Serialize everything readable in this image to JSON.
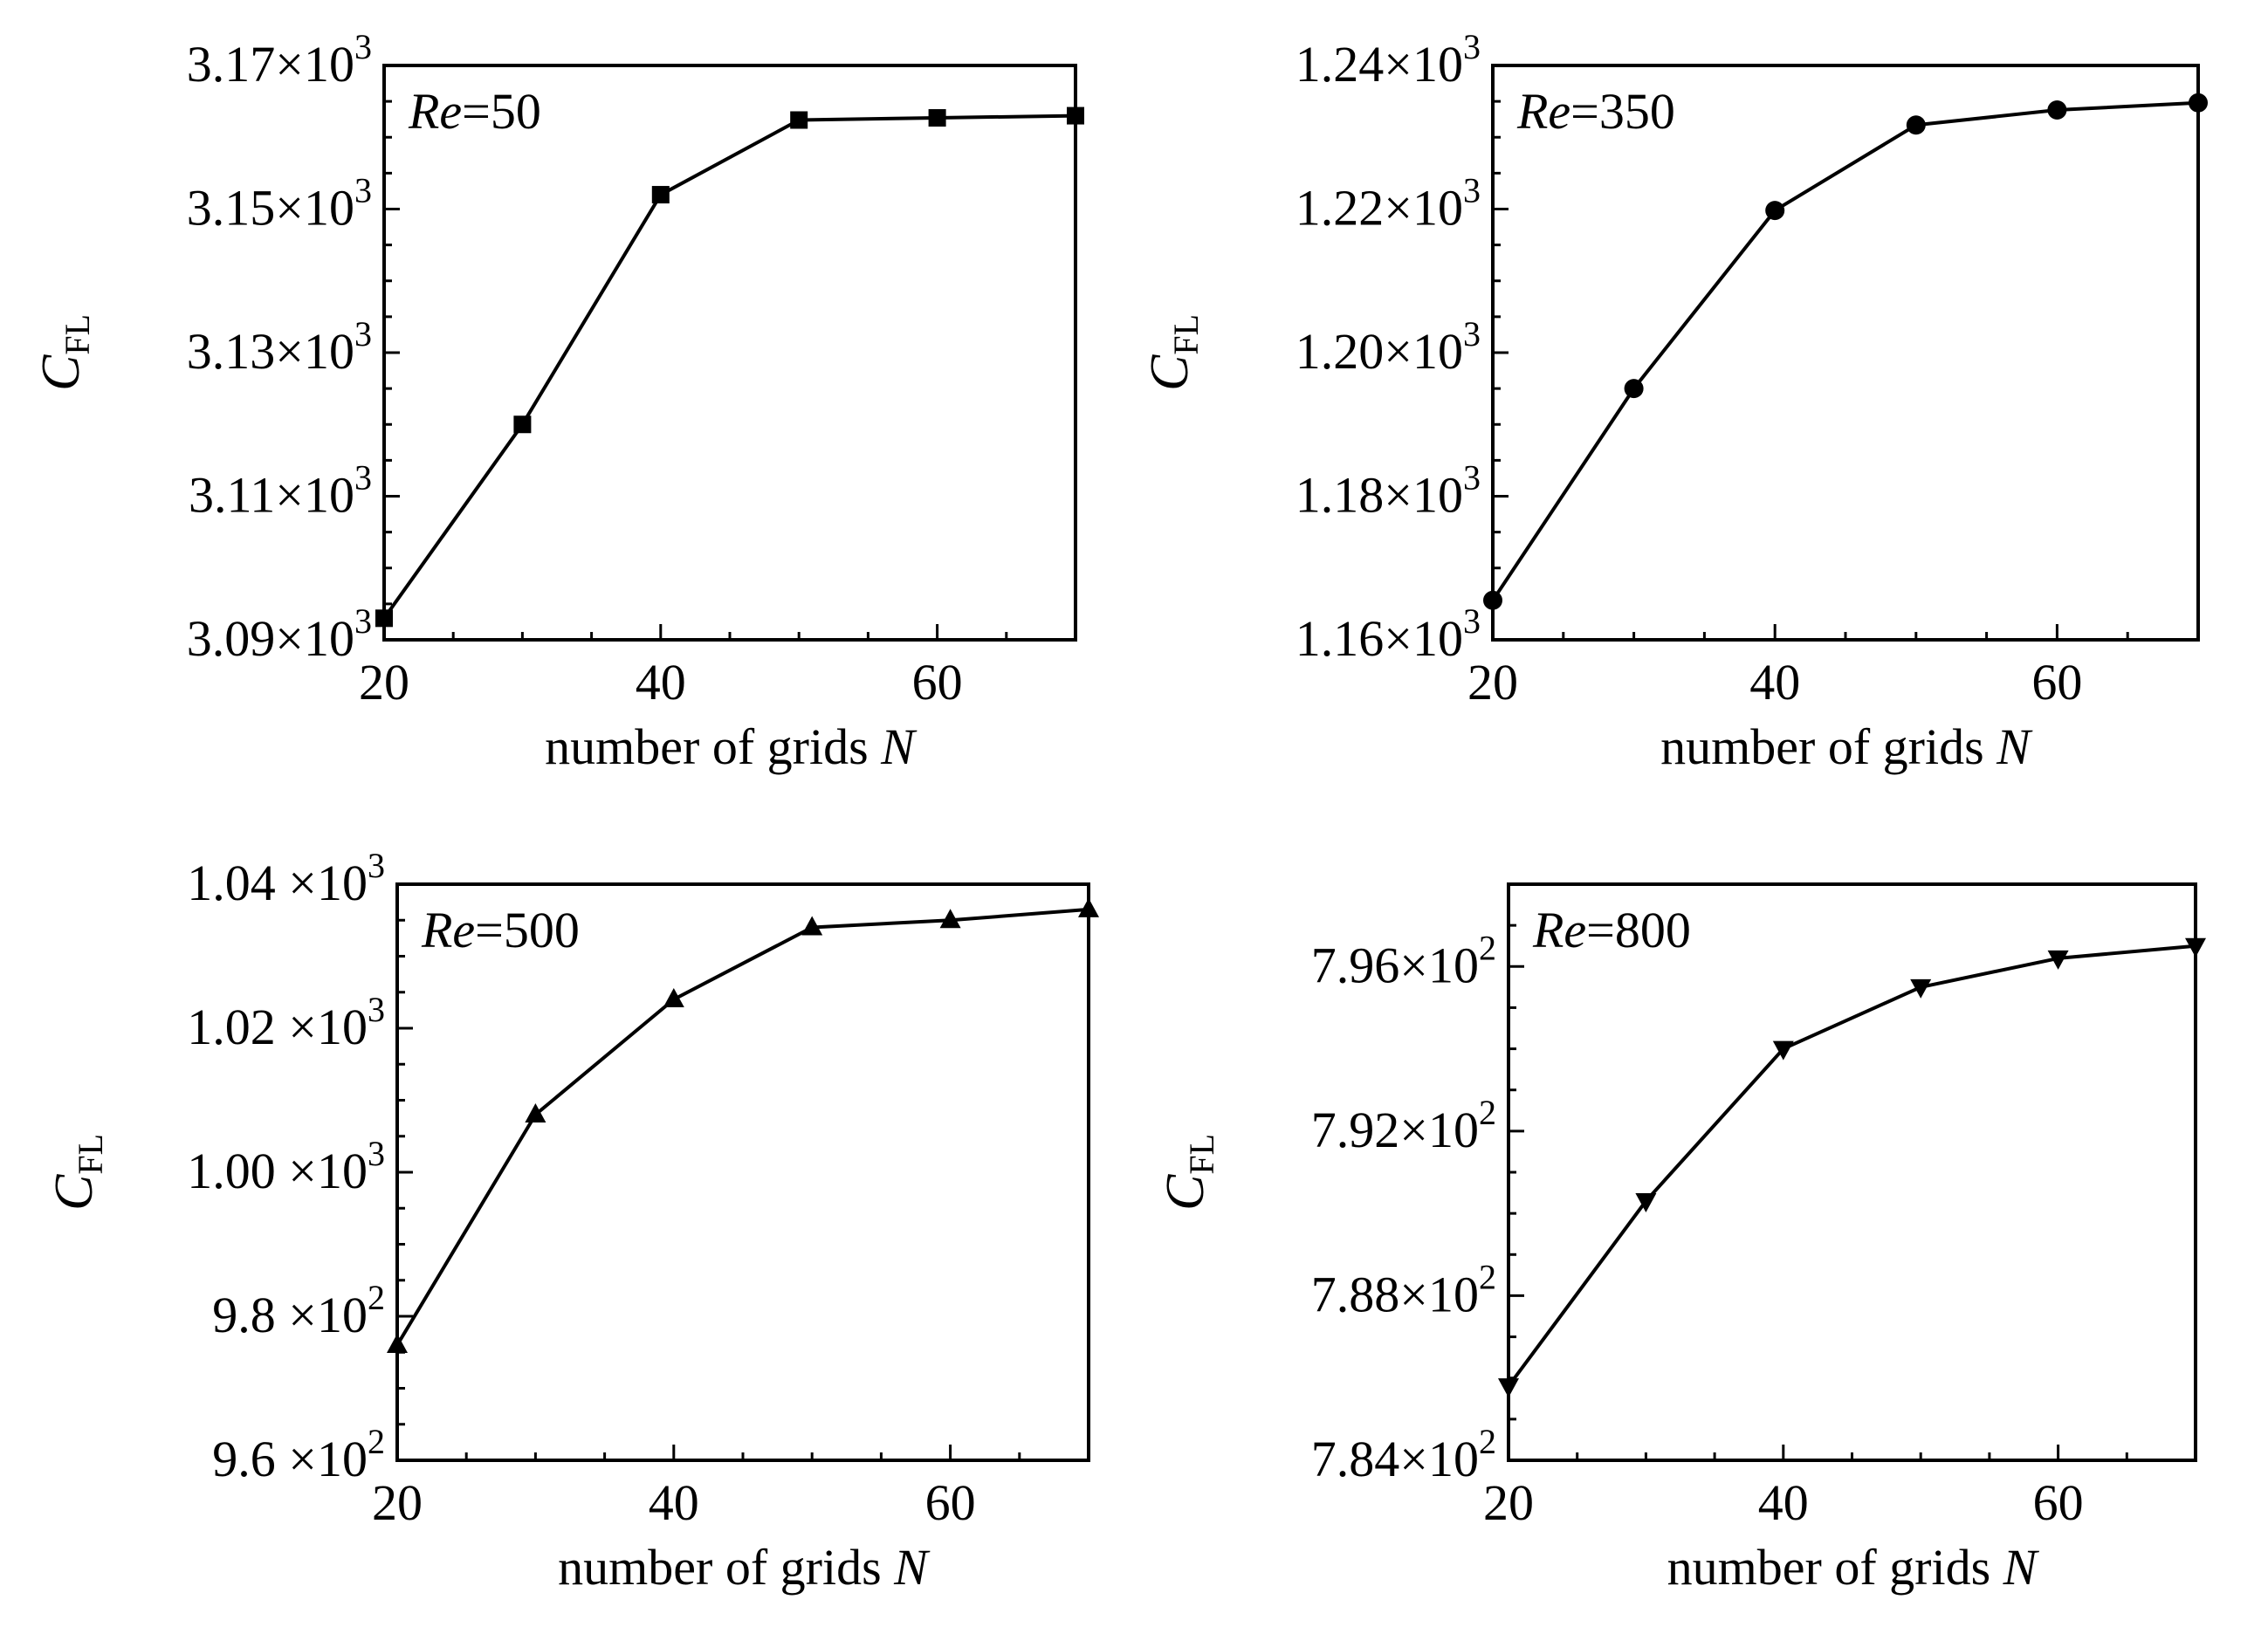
{
  "chart_data": [
    {
      "type": "line",
      "annotation": {
        "italic": "Re",
        "rest": "=50"
      },
      "xlabel": {
        "text": "number of grids ",
        "italic": "N"
      },
      "ylabel": {
        "main": "C",
        "sub": "FL"
      },
      "xlim": [
        20,
        70
      ],
      "ylim": [
        3090,
        3170
      ],
      "xticks": [
        20,
        40,
        60
      ],
      "yticks": [
        {
          "value": 3090,
          "mantissa": "3.09",
          "exponent": "3"
        },
        {
          "value": 3110,
          "mantissa": "3.11",
          "exponent": "3"
        },
        {
          "value": 3130,
          "mantissa": "3.13",
          "exponent": "3"
        },
        {
          "value": 3150,
          "mantissa": "3.15",
          "exponent": "3"
        },
        {
          "value": 3170,
          "mantissa": "3.17",
          "exponent": "3"
        }
      ],
      "marker": "square",
      "x": [
        20,
        30,
        40,
        50,
        60,
        70
      ],
      "y": [
        3093,
        3120,
        3152,
        3162.4,
        3162.7,
        3163.0
      ]
    },
    {
      "type": "line",
      "annotation": {
        "italic": "Re",
        "rest": "=350"
      },
      "xlabel": {
        "text": "number of grids ",
        "italic": "N"
      },
      "ylabel": {
        "main": "C",
        "sub": "FL"
      },
      "xlim": [
        20,
        70
      ],
      "ylim": [
        1160,
        1240
      ],
      "xticks": [
        20,
        40,
        60
      ],
      "yticks": [
        {
          "value": 1160,
          "mantissa": "1.16",
          "exponent": "3"
        },
        {
          "value": 1180,
          "mantissa": "1.18",
          "exponent": "3"
        },
        {
          "value": 1200,
          "mantissa": "1.20",
          "exponent": "3"
        },
        {
          "value": 1220,
          "mantissa": "1.22",
          "exponent": "3"
        },
        {
          "value": 1240,
          "mantissa": "1.24",
          "exponent": "3"
        }
      ],
      "marker": "circle",
      "x": [
        20,
        30,
        40,
        50,
        60,
        70
      ],
      "y": [
        1165.5,
        1195,
        1219.8,
        1231.7,
        1233.8,
        1234.8
      ]
    },
    {
      "type": "line",
      "annotation": {
        "italic": "Re",
        "rest": "=500"
      },
      "xlabel": {
        "text": "number of grids ",
        "italic": "N"
      },
      "ylabel": {
        "main": "C",
        "sub": "FL"
      },
      "xlim": [
        20,
        70
      ],
      "ylim": [
        960,
        1040
      ],
      "xticks": [
        20,
        40,
        60
      ],
      "yticks": [
        {
          "value": 960,
          "mantissa": "9.6 ",
          "exponent": "2"
        },
        {
          "value": 980,
          "mantissa": "9.8 ",
          "exponent": "2"
        },
        {
          "value": 1000,
          "mantissa": "1.00 ",
          "exponent": "3"
        },
        {
          "value": 1020,
          "mantissa": "1.02 ",
          "exponent": "3"
        },
        {
          "value": 1040,
          "mantissa": "1.04 ",
          "exponent": "3"
        }
      ],
      "marker": "triangle-up",
      "x": [
        20,
        30,
        40,
        50,
        60,
        70
      ],
      "y": [
        976,
        1008,
        1024,
        1034,
        1035,
        1036.5
      ]
    },
    {
      "type": "line",
      "annotation": {
        "italic": "Re",
        "rest": "=800"
      },
      "xlabel": {
        "text": "number of grids ",
        "italic": "N"
      },
      "ylabel": {
        "main": "C",
        "sub": "FL"
      },
      "xlim": [
        20,
        70
      ],
      "ylim": [
        784,
        798
      ],
      "xticks": [
        20,
        40,
        60
      ],
      "yticks": [
        {
          "value": 784,
          "mantissa": "7.84",
          "exponent": "2"
        },
        {
          "value": 788,
          "mantissa": "7.88",
          "exponent": "2"
        },
        {
          "value": 792,
          "mantissa": "7.92",
          "exponent": "2"
        },
        {
          "value": 796,
          "mantissa": "7.96",
          "exponent": "2"
        }
      ],
      "marker": "triangle-down",
      "x": [
        20,
        30,
        40,
        50,
        60,
        70
      ],
      "y": [
        785.8,
        790.3,
        794.0,
        795.5,
        796.2,
        796.5
      ]
    }
  ]
}
